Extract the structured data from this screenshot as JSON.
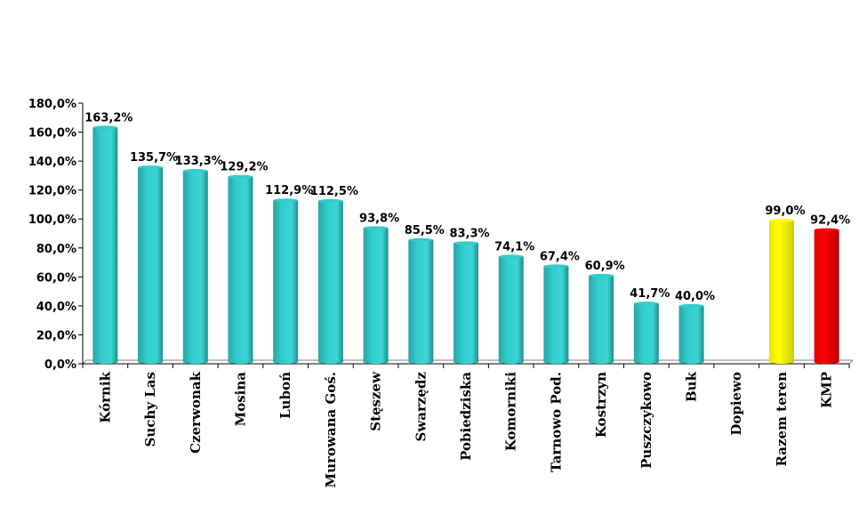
{
  "chart_data": {
    "type": "bar",
    "title": "",
    "xlabel": "",
    "ylabel": "",
    "ylim": [
      0,
      180
    ],
    "yticks": [
      "0,0%",
      "20,0%",
      "40,0%",
      "60,0%",
      "80,0%",
      "100,0%",
      "120,0%",
      "140,0%",
      "160,0%",
      "180,0%"
    ],
    "grid": false,
    "legend": "none",
    "categories": [
      "Kórnik",
      "Suchy Las",
      "Czerwonak",
      "Mosina",
      "Luboń",
      "Murowana Goś.",
      "Stęszew",
      "Swarzędz",
      "Pobiedziska",
      "Komorniki",
      "Tarnowo Pod.",
      "Kostrzyn",
      "Puszczykowo",
      "Buk",
      "Dopiewo",
      "Razem teren",
      "KMP"
    ],
    "values": [
      163.2,
      135.7,
      133.3,
      129.2,
      112.9,
      112.5,
      93.8,
      85.5,
      83.3,
      74.1,
      67.4,
      60.9,
      41.7,
      40.0,
      null,
      99.0,
      92.4
    ],
    "value_labels": [
      "163,2%",
      "135,7%",
      "133,3%",
      "129,2%",
      "112,9%",
      "112,5%",
      "93,8%",
      "85,5%",
      "83,3%",
      "74,1%",
      "67,4%",
      "60,9%",
      "41,7%",
      "40,0%",
      "",
      "99,0%",
      "92,4%"
    ],
    "colors": [
      "#33CCCC",
      "#33CCCC",
      "#33CCCC",
      "#33CCCC",
      "#33CCCC",
      "#33CCCC",
      "#33CCCC",
      "#33CCCC",
      "#33CCCC",
      "#33CCCC",
      "#33CCCC",
      "#33CCCC",
      "#33CCCC",
      "#33CCCC",
      "#33CCCC",
      "#FFFF00",
      "#FF0000"
    ]
  }
}
